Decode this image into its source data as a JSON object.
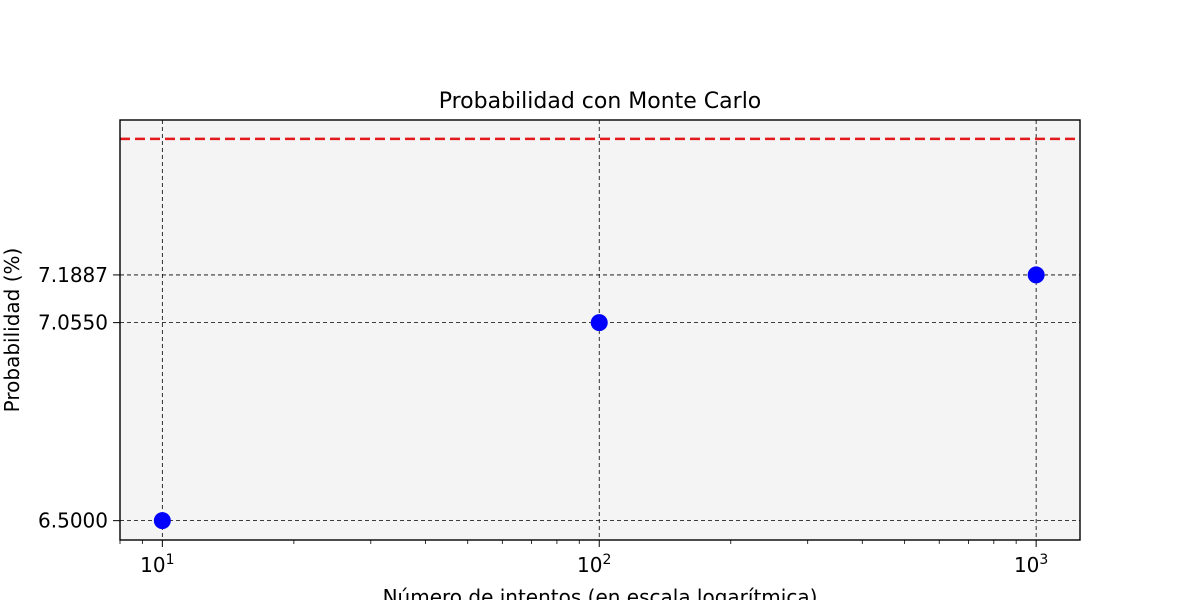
{
  "chart_data": {
    "type": "scatter",
    "title": "Probabilidad con Monte Carlo",
    "xlabel": "Número de intentos (en escala logarítmica)",
    "ylabel": "Probabilidad (%)",
    "x_scale": "log",
    "xlim": [
      8,
      1260
    ],
    "ylim": [
      6.4458,
      7.6229
    ],
    "x_ticks": [
      {
        "value": 10,
        "base": "10",
        "exp": "1"
      },
      {
        "value": 100,
        "base": "10",
        "exp": "2"
      },
      {
        "value": 1000,
        "base": "10",
        "exp": "3"
      }
    ],
    "y_ticks": [
      "6.5000",
      "7.0550",
      "7.1887"
    ],
    "series": [
      {
        "x": [
          10,
          100,
          1000
        ],
        "y": [
          6.5,
          7.055,
          7.1887
        ],
        "marker": "circle",
        "color": "#0000ff"
      }
    ],
    "reference_line": {
      "y": 7.57,
      "color": "#e31a1c",
      "style": "dashed"
    },
    "grid": true,
    "plot_background": "#f4f4f4"
  }
}
